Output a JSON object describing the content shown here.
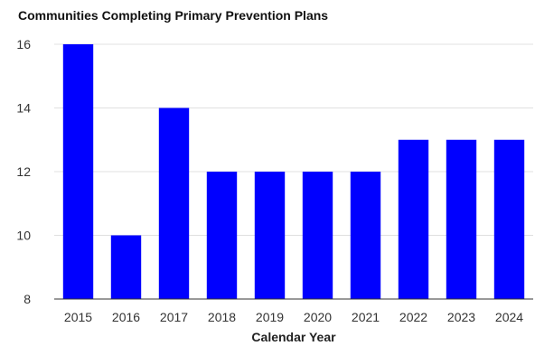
{
  "chart_data": {
    "type": "bar",
    "title": "Communities Completing Primary Prevention Plans",
    "xlabel": "Calendar Year",
    "ylabel": "",
    "categories": [
      "2015",
      "2016",
      "2017",
      "2018",
      "2019",
      "2020",
      "2021",
      "2022",
      "2023",
      "2024"
    ],
    "values": [
      16,
      10,
      14,
      12,
      12,
      12,
      12,
      13,
      13,
      13
    ],
    "ylim": [
      8,
      16
    ],
    "yticks": [
      "8",
      "10",
      "12",
      "14",
      "16"
    ],
    "grid": true,
    "legend": "none",
    "bar_color": "#0000ff"
  }
}
